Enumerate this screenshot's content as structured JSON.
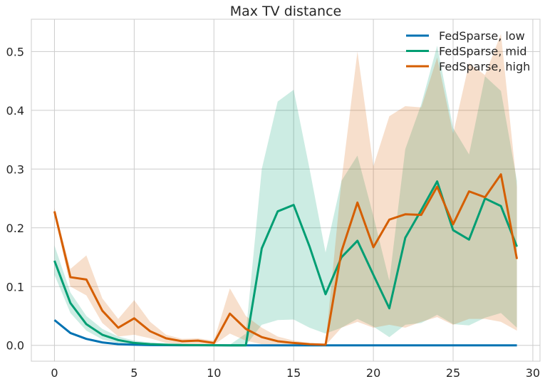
{
  "chart_data": {
    "type": "line",
    "title": "Max TV distance",
    "xlabel": "",
    "ylabel": "",
    "xlim": [
      -1.45,
      30.45
    ],
    "ylim": [
      -0.027,
      0.555
    ],
    "xticks": [
      0,
      5,
      10,
      15,
      20,
      25,
      30
    ],
    "yticks": [
      0.0,
      0.1,
      0.2,
      0.3,
      0.4,
      0.5
    ],
    "xtick_labels": [
      "0",
      "5",
      "10",
      "15",
      "20",
      "25",
      "30"
    ],
    "ytick_labels": [
      "0.0",
      "0.1",
      "0.2",
      "0.3",
      "0.4",
      "0.5"
    ],
    "grid": true,
    "legend_position": "top-right",
    "x": [
      0,
      1,
      2,
      3,
      4,
      5,
      6,
      7,
      8,
      9,
      10,
      11,
      12,
      13,
      14,
      15,
      16,
      17,
      18,
      19,
      20,
      21,
      22,
      23,
      24,
      25,
      26,
      27,
      28,
      29
    ],
    "series": [
      {
        "name": "FedSparse, low",
        "color": "#0072b2",
        "values": [
          0.043,
          0.021,
          0.011,
          0.005,
          0.002,
          0.001,
          0.0005,
          0.0003,
          0.0002,
          0.0001,
          0.0001,
          0,
          0,
          0,
          0,
          0,
          0,
          0,
          0,
          0,
          0,
          0,
          0,
          0,
          0,
          0,
          0,
          0,
          0,
          0
        ],
        "lower": null,
        "upper": null
      },
      {
        "name": "FedSparse, mid",
        "color": "#009e73",
        "values": [
          0.144,
          0.072,
          0.036,
          0.018,
          0.009,
          0.004,
          0.002,
          0.001,
          0.0005,
          0.0003,
          0.0001,
          0,
          0,
          0.165,
          0.228,
          0.239,
          0.168,
          0.087,
          0.15,
          0.178,
          0.12,
          0.063,
          0.183,
          0.23,
          0.279,
          0.196,
          0.18,
          0.25,
          0.237,
          0.168
        ],
        "lower": [
          0.12,
          0.055,
          0.025,
          0.01,
          0.004,
          0.001,
          0,
          0,
          0,
          0,
          0,
          0,
          0,
          0.035,
          0.043,
          0.044,
          0.03,
          0.02,
          0.03,
          0.045,
          0.032,
          0.014,
          0.035,
          0.038,
          0.052,
          0.036,
          0.034,
          0.047,
          0.055,
          0.03
        ],
        "upper": [
          0.17,
          0.09,
          0.05,
          0.028,
          0.015,
          0.008,
          0.005,
          0.003,
          0.001,
          0.001,
          0.001,
          0.001,
          0.02,
          0.3,
          0.415,
          0.435,
          0.3,
          0.158,
          0.28,
          0.323,
          0.22,
          0.11,
          0.334,
          0.41,
          0.51,
          0.37,
          0.325,
          0.458,
          0.433,
          0.28
        ]
      },
      {
        "name": "FedSparse, high",
        "color": "#d55e00",
        "values": [
          0.228,
          0.116,
          0.112,
          0.059,
          0.03,
          0.046,
          0.024,
          0.012,
          0.007,
          0.008,
          0.004,
          0.054,
          0.028,
          0.014,
          0.007,
          0.004,
          0.002,
          0.001,
          0.16,
          0.243,
          0.167,
          0.214,
          0.223,
          0.222,
          0.27,
          0.206,
          0.262,
          0.252,
          0.291,
          0.147
        ],
        "lower": [
          0.222,
          0.1,
          0.085,
          0.038,
          0.015,
          0.018,
          0.012,
          0.004,
          0.002,
          0.002,
          0.001,
          0.02,
          0.008,
          0.002,
          0.001,
          0,
          0,
          0,
          0.03,
          0.04,
          0.03,
          0.035,
          0.03,
          0.04,
          0.048,
          0.035,
          0.045,
          0.045,
          0.04,
          0.025
        ],
        "upper": [
          0.234,
          0.13,
          0.153,
          0.08,
          0.045,
          0.077,
          0.04,
          0.018,
          0.011,
          0.012,
          0.008,
          0.097,
          0.05,
          0.03,
          0.015,
          0.008,
          0.004,
          0.002,
          0.28,
          0.5,
          0.305,
          0.39,
          0.407,
          0.405,
          0.49,
          0.36,
          0.48,
          0.46,
          0.53,
          0.27
        ]
      }
    ]
  }
}
